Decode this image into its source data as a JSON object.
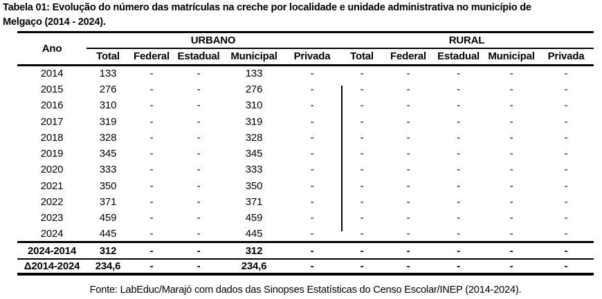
{
  "title": {
    "line1": "Tabela 01: Evolução do número das matrículas na creche por localidade e unidade administrativa no município de",
    "line2": "Melgaço (2014 - 2024)."
  },
  "table": {
    "year_header": "Ano",
    "groups": [
      "URBANO",
      "RURAL"
    ],
    "subheaders": [
      "Total",
      "Federal",
      "Estadual",
      "Municipal",
      "Privada",
      "Total",
      "Federal",
      "Estadual",
      "Municipal",
      "Privada"
    ],
    "rows": [
      {
        "year": "2014",
        "values": [
          "133",
          "-",
          "-",
          "133",
          "-",
          "-",
          "-",
          "-",
          "-",
          "-"
        ]
      },
      {
        "year": "2015",
        "values": [
          "276",
          "-",
          "-",
          "276",
          "-",
          "-",
          "-",
          "-",
          "-",
          "-"
        ]
      },
      {
        "year": "2016",
        "values": [
          "310",
          "-",
          "-",
          "310",
          "-",
          "-",
          "-",
          "-",
          "-",
          "-"
        ]
      },
      {
        "year": "2017",
        "values": [
          "319",
          "-",
          "-",
          "319",
          "-",
          "-",
          "-",
          "-",
          "-",
          "-"
        ]
      },
      {
        "year": "2018",
        "values": [
          "328",
          "-",
          "-",
          "328",
          "-",
          "-",
          "-",
          "-",
          "-",
          "-"
        ]
      },
      {
        "year": "2019",
        "values": [
          "345",
          "-",
          "-",
          "345",
          "-",
          "-",
          "-",
          "-",
          "-",
          "-"
        ]
      },
      {
        "year": "2020",
        "values": [
          "333",
          "-",
          "-",
          "333",
          "-",
          "-",
          "-",
          "-",
          "-",
          "-"
        ]
      },
      {
        "year": "2021",
        "values": [
          "350",
          "-",
          "-",
          "350",
          "-",
          "-",
          "-",
          "-",
          "-",
          "-"
        ]
      },
      {
        "year": "2022",
        "values": [
          "371",
          "-",
          "-",
          "371",
          "-",
          "-",
          "-",
          "-",
          "-",
          "-"
        ]
      },
      {
        "year": "2023",
        "values": [
          "459",
          "-",
          "-",
          "459",
          "-",
          "-",
          "-",
          "-",
          "-",
          "-"
        ]
      },
      {
        "year": "2024",
        "values": [
          "445",
          "-",
          "-",
          "445",
          "-",
          "-",
          "-",
          "-",
          "-",
          "-"
        ]
      }
    ],
    "summary_rows": [
      {
        "label": "2024-2014",
        "values": [
          "312",
          "-",
          "-",
          "312",
          "-",
          "-",
          "-",
          "-",
          "-",
          "-"
        ]
      },
      {
        "label": "Δ2014-2024",
        "values": [
          "234,6",
          "-",
          "-",
          "234,6",
          "-",
          "-",
          "-",
          "-",
          "-",
          "-"
        ]
      }
    ]
  },
  "footer": {
    "source": "Fonte: LabEduc/Marajó com dados das Sinopses Estatísticas do Censo Escolar/INEP (2014-2024)."
  }
}
